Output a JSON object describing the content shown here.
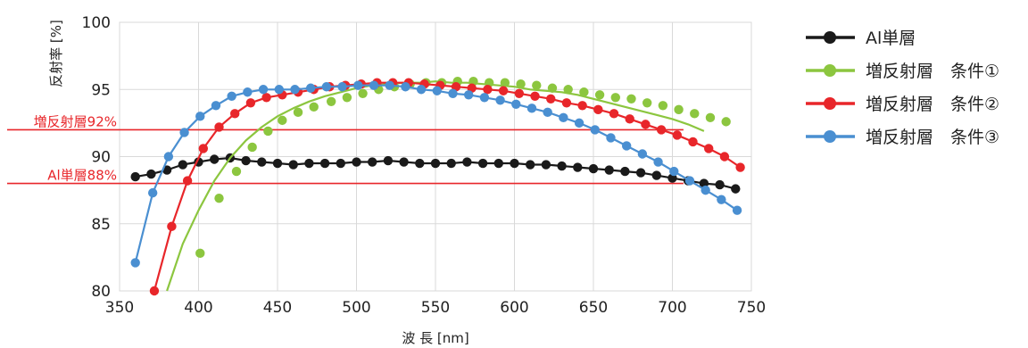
{
  "chart_data": {
    "type": "line",
    "xlabel": "波 長 [nm]",
    "ylabel": "反射率 [%]",
    "xlim": [
      350,
      750
    ],
    "ylim": [
      80,
      100
    ],
    "xticks": [
      350,
      400,
      450,
      500,
      550,
      600,
      650,
      700,
      750
    ],
    "yticks": [
      80,
      85,
      90,
      95,
      100
    ],
    "grid": true,
    "legend_position": "right",
    "reference_lines": [
      {
        "label": "増反射層92%",
        "y": 92,
        "x_start": 350,
        "x_end": 707,
        "color": "#e8262a"
      },
      {
        "label": "Al単層88%",
        "y": 88,
        "x_start": 350,
        "x_end": 707,
        "color": "#e8262a"
      }
    ],
    "series": [
      {
        "name": "Al単層",
        "color": "#1a1a1a",
        "markers": {
          "x": [
            360,
            370,
            380,
            390,
            400,
            410,
            420,
            430,
            440,
            450,
            460,
            470,
            480,
            490,
            500,
            510,
            520,
            530,
            540,
            550,
            560,
            570,
            580,
            590,
            600,
            610,
            620,
            630,
            640,
            650,
            660,
            670,
            680,
            690,
            700,
            710,
            720,
            730,
            740
          ],
          "y": [
            88.5,
            88.7,
            89.0,
            89.4,
            89.6,
            89.8,
            89.9,
            89.7,
            89.6,
            89.5,
            89.4,
            89.5,
            89.5,
            89.5,
            89.6,
            89.6,
            89.7,
            89.6,
            89.5,
            89.5,
            89.5,
            89.6,
            89.5,
            89.5,
            89.5,
            89.4,
            89.4,
            89.3,
            89.2,
            89.1,
            89.0,
            88.9,
            88.8,
            88.6,
            88.4,
            88.2,
            88.0,
            87.9,
            87.6
          ]
        },
        "line": {
          "x": [
            360,
            370,
            380,
            390,
            400,
            410,
            420,
            430,
            440,
            450,
            460,
            470,
            480,
            490,
            500,
            510,
            520,
            530,
            540,
            550,
            560,
            570,
            580,
            590,
            600,
            610,
            620,
            630,
            640,
            650,
            660,
            670,
            680,
            690,
            700,
            710,
            720,
            730,
            740
          ],
          "y": [
            88.5,
            88.7,
            89.0,
            89.4,
            89.6,
            89.8,
            89.9,
            89.7,
            89.6,
            89.5,
            89.4,
            89.5,
            89.5,
            89.5,
            89.6,
            89.6,
            89.7,
            89.6,
            89.5,
            89.5,
            89.5,
            89.6,
            89.5,
            89.5,
            89.5,
            89.4,
            89.4,
            89.3,
            89.2,
            89.1,
            89.0,
            88.9,
            88.8,
            88.6,
            88.4,
            88.2,
            88.0,
            87.9,
            87.6
          ]
        }
      },
      {
        "name": "増反射層　条件①",
        "color": "#8cc63f",
        "markers": {
          "x": [
            401,
            413,
            424,
            434,
            444,
            453,
            463,
            473,
            484,
            494,
            504,
            514,
            524,
            534,
            544,
            554,
            564,
            574,
            584,
            594,
            604,
            614,
            624,
            634,
            644,
            654,
            664,
            674,
            684,
            694,
            704,
            714,
            724,
            734
          ],
          "y": [
            82.8,
            86.9,
            88.9,
            90.7,
            91.9,
            92.7,
            93.3,
            93.7,
            94.1,
            94.4,
            94.7,
            95.0,
            95.2,
            95.4,
            95.5,
            95.5,
            95.6,
            95.6,
            95.5,
            95.5,
            95.4,
            95.3,
            95.1,
            95.0,
            94.8,
            94.6,
            94.4,
            94.3,
            94.0,
            93.8,
            93.5,
            93.2,
            92.9,
            92.6
          ]
        },
        "line": {
          "x": [
            380,
            390,
            400,
            410,
            420,
            430,
            440,
            450,
            460,
            470,
            480,
            490,
            500,
            510,
            520,
            530,
            540,
            550,
            560,
            570,
            580,
            590,
            600,
            610,
            620,
            630,
            640,
            650,
            660,
            670,
            680,
            690,
            700,
            710,
            720
          ],
          "y": [
            80.0,
            83.5,
            86.0,
            88.2,
            89.9,
            91.2,
            92.2,
            93.0,
            93.6,
            94.1,
            94.5,
            94.8,
            95.1,
            95.3,
            95.4,
            95.5,
            95.5,
            95.6,
            95.5,
            95.5,
            95.4,
            95.3,
            95.2,
            95.0,
            94.9,
            94.8,
            94.6,
            94.3,
            94.0,
            93.7,
            93.4,
            93.1,
            92.8,
            92.4,
            91.9
          ]
        }
      },
      {
        "name": "増反射層　条件②",
        "color": "#e8262a",
        "markers": {
          "x": [
            372,
            383,
            393,
            403,
            413,
            423,
            433,
            443,
            453,
            463,
            473,
            483,
            493,
            503,
            513,
            523,
            533,
            543,
            553,
            563,
            573,
            583,
            593,
            603,
            613,
            623,
            633,
            643,
            653,
            663,
            673,
            683,
            693,
            703,
            713,
            723,
            733,
            743
          ],
          "y": [
            80.0,
            84.8,
            88.2,
            90.6,
            92.2,
            93.2,
            94.0,
            94.4,
            94.6,
            94.8,
            95.0,
            95.2,
            95.3,
            95.4,
            95.5,
            95.5,
            95.5,
            95.4,
            95.3,
            95.2,
            95.1,
            95.0,
            94.9,
            94.7,
            94.5,
            94.3,
            94.0,
            93.8,
            93.5,
            93.2,
            92.8,
            92.4,
            92.0,
            91.6,
            91.1,
            90.6,
            90.0,
            89.2
          ]
        },
        "line": {
          "x": [
            372,
            383,
            393,
            403,
            413,
            423,
            433,
            443,
            453,
            463,
            473,
            483,
            493,
            503,
            513,
            523,
            533,
            543,
            553,
            563,
            573,
            583,
            593,
            603,
            613,
            623,
            633,
            643,
            653,
            663,
            673,
            683,
            693,
            703,
            713,
            723,
            733,
            743
          ],
          "y": [
            80.0,
            84.8,
            88.2,
            90.6,
            92.2,
            93.2,
            94.0,
            94.4,
            94.6,
            94.8,
            95.0,
            95.2,
            95.3,
            95.4,
            95.5,
            95.5,
            95.5,
            95.4,
            95.3,
            95.2,
            95.1,
            95.0,
            94.9,
            94.7,
            94.5,
            94.3,
            94.0,
            93.8,
            93.5,
            93.2,
            92.8,
            92.4,
            92.0,
            91.6,
            91.1,
            90.6,
            90.0,
            89.2
          ]
        }
      },
      {
        "name": "増反射層　条件③",
        "color": "#4a8fd1",
        "markers": {
          "x": [
            360,
            371,
            381,
            391,
            401,
            411,
            421,
            431,
            441,
            451,
            461,
            471,
            481,
            491,
            501,
            511,
            521,
            531,
            541,
            551,
            561,
            571,
            581,
            591,
            601,
            611,
            621,
            631,
            641,
            651,
            661,
            671,
            681,
            691,
            701,
            711,
            721,
            731,
            741
          ],
          "y": [
            82.1,
            87.3,
            90.0,
            91.8,
            93.0,
            93.8,
            94.5,
            94.8,
            95.0,
            95.0,
            95.0,
            95.1,
            95.2,
            95.2,
            95.3,
            95.3,
            95.3,
            95.2,
            95.0,
            94.9,
            94.7,
            94.6,
            94.4,
            94.2,
            93.9,
            93.6,
            93.3,
            92.9,
            92.5,
            92.0,
            91.4,
            90.8,
            90.2,
            89.6,
            88.9,
            88.2,
            87.5,
            86.8,
            86.0
          ]
        },
        "line": {
          "x": [
            360,
            371,
            381,
            391,
            401,
            411,
            421,
            431,
            441,
            451,
            461,
            471,
            481,
            491,
            501,
            511,
            521,
            531,
            541,
            551,
            561,
            571,
            581,
            591,
            601,
            611,
            621,
            631,
            641,
            651,
            661,
            671,
            681,
            691,
            701,
            711,
            721,
            731,
            741
          ],
          "y": [
            82.1,
            87.3,
            90.0,
            91.8,
            93.0,
            93.8,
            94.5,
            94.8,
            95.0,
            95.0,
            95.0,
            95.1,
            95.2,
            95.2,
            95.3,
            95.3,
            95.3,
            95.2,
            95.0,
            94.9,
            94.7,
            94.6,
            94.4,
            94.2,
            93.9,
            93.6,
            93.3,
            92.9,
            92.5,
            92.0,
            91.4,
            90.8,
            90.2,
            89.6,
            88.9,
            88.2,
            87.5,
            86.8,
            86.0
          ]
        }
      }
    ]
  }
}
